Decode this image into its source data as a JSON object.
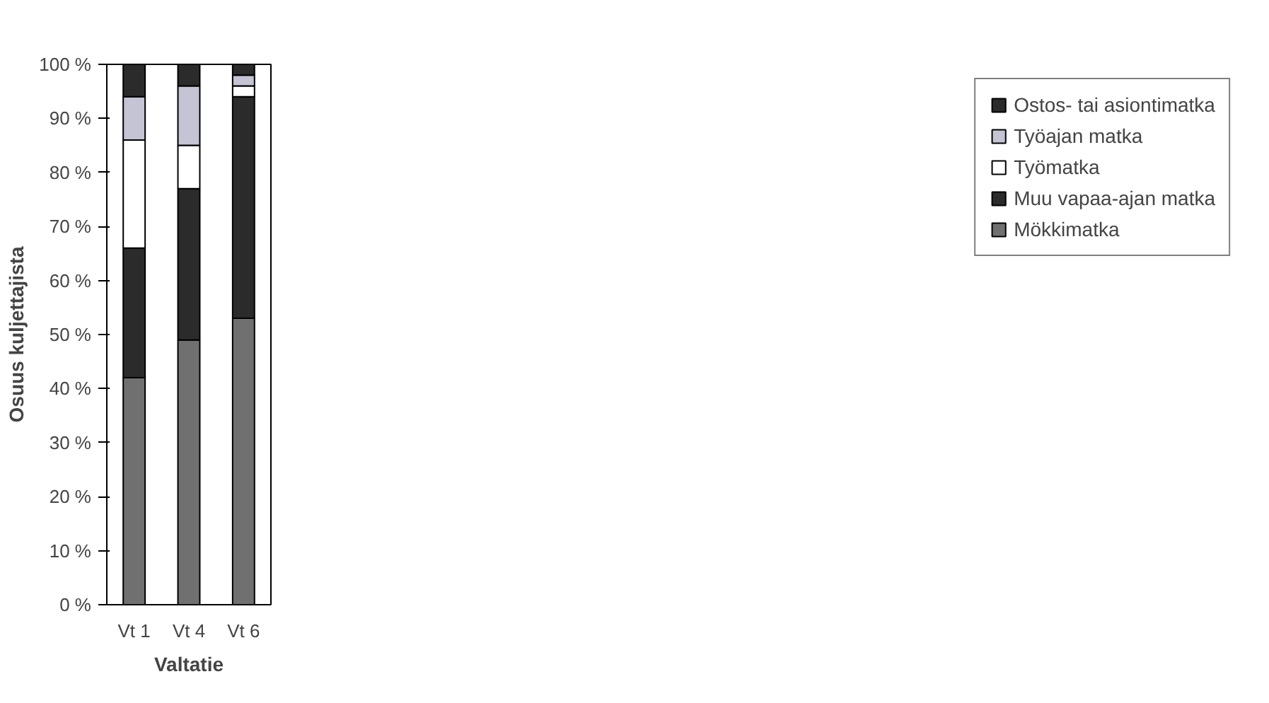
{
  "chart_data": {
    "type": "bar",
    "stacked": true,
    "xlabel": "Valtatie",
    "ylabel": "Osuus kuljettajista",
    "categories": [
      "Vt 1",
      "Vt 4",
      "Vt 6"
    ],
    "series": [
      {
        "name": "Mökkimatka",
        "color": "#707070",
        "values": [
          42,
          49,
          53
        ]
      },
      {
        "name": "Muu vapaa-ajan matka",
        "color": "#2b2b2b",
        "values": [
          24,
          28,
          41
        ]
      },
      {
        "name": "Työmatka",
        "color": "#ffffff",
        "values": [
          20,
          8,
          2
        ]
      },
      {
        "name": "Työajan matka",
        "color": "#c4c4d4",
        "values": [
          8,
          11,
          2
        ]
      },
      {
        "name": "Ostos- tai asiontimatka",
        "color": "#2b2b2b",
        "values": [
          6,
          4,
          2
        ]
      }
    ],
    "ylim": [
      0,
      100
    ],
    "yticks": [
      {
        "value": 0,
        "label": "0 %"
      },
      {
        "value": 10,
        "label": "10 %"
      },
      {
        "value": 20,
        "label": "20 %"
      },
      {
        "value": 30,
        "label": "30 %"
      },
      {
        "value": 40,
        "label": "40 %"
      },
      {
        "value": 50,
        "label": "50 %"
      },
      {
        "value": 60,
        "label": "60 %"
      },
      {
        "value": 70,
        "label": "70 %"
      },
      {
        "value": 80,
        "label": "80 %"
      },
      {
        "value": 90,
        "label": "90 %"
      },
      {
        "value": 100,
        "label": "100 %"
      }
    ],
    "grid": false,
    "legend": "right"
  }
}
